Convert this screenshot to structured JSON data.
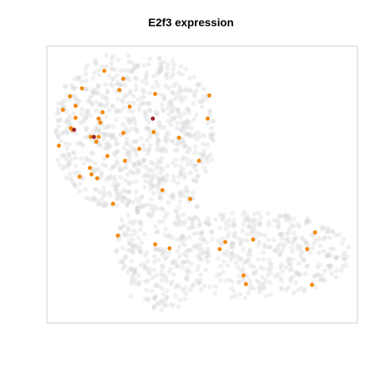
{
  "chart_data": {
    "type": "scatter",
    "title": "E2f3 expression",
    "xlabel": "",
    "ylabel": "",
    "axes_visible": false,
    "grid": false,
    "legend": "none",
    "colors": {
      "background_cells": "#d3d3d3",
      "expressing": "#f28a0f",
      "high_expressing": "#9b2226",
      "frame": "#cfcfcf"
    },
    "series": [
      {
        "role": "expressing",
        "points": [
          [
            131,
            89
          ],
          [
            155,
            99
          ],
          [
            88,
            121
          ],
          [
            103,
            111
          ],
          [
            150,
            113
          ],
          [
            95,
            133
          ],
          [
            79,
            138
          ],
          [
            163,
            134
          ],
          [
            129,
            141
          ],
          [
            195,
            118
          ],
          [
            263,
            120
          ],
          [
            95,
            148
          ],
          [
            124,
            149
          ],
          [
            126,
            154
          ],
          [
            261,
            149
          ],
          [
            89,
            161
          ],
          [
            91,
            163
          ],
          [
            114,
            172
          ],
          [
            124,
            172
          ],
          [
            155,
            167
          ],
          [
            193,
            166
          ],
          [
            74,
            183
          ],
          [
            121,
            178
          ],
          [
            175,
            187
          ],
          [
            225,
            173
          ],
          [
            135,
            196
          ],
          [
            157,
            202
          ],
          [
            113,
            211
          ],
          [
            250,
            202
          ],
          [
            100,
            222
          ],
          [
            115,
            219
          ],
          [
            122,
            224
          ],
          [
            204,
            239
          ],
          [
            142,
            256
          ],
          [
            239,
            250
          ],
          [
            148,
            296
          ],
          [
            396,
            292
          ],
          [
            283,
            304
          ],
          [
            318,
            301
          ],
          [
            195,
            307
          ],
          [
            213,
            312
          ],
          [
            276,
            313
          ],
          [
            386,
            313
          ],
          [
            306,
            346
          ],
          [
            309,
            357
          ],
          [
            392,
            358
          ]
        ]
      },
      {
        "role": "high_expressing",
        "points": [
          [
            192,
            149
          ],
          [
            93,
            163
          ],
          [
            118,
            172
          ]
        ]
      }
    ]
  }
}
